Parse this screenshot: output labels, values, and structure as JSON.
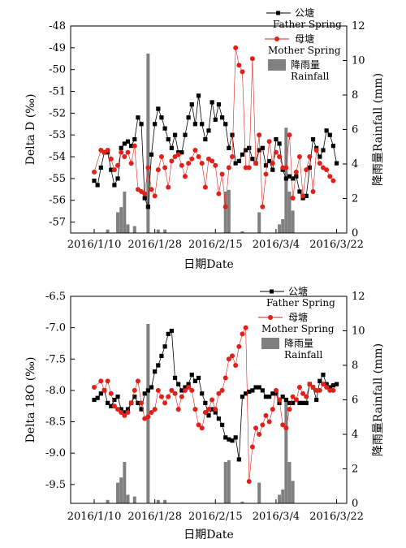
{
  "chart_data": [
    {
      "type": "line",
      "panel": "top",
      "xlabel": "日期Date",
      "ylabel": "Delta D (‰)",
      "y2label": "降雨量Rainfall (mm)",
      "x_ticks": [
        "2016/1/10",
        "2016/1/28",
        "2016/2/15",
        "2016/3/4",
        "2016/3/22"
      ],
      "ylim": [
        -57.5,
        -48
      ],
      "yticks": [
        -57,
        -56,
        -55,
        -54,
        -53,
        -52,
        -51,
        -50,
        -49,
        -48
      ],
      "ytick_labels": [
        "-57",
        "-56",
        "-55",
        "-54",
        "-53",
        "-52",
        "-51",
        "-50",
        "-49",
        "-48"
      ],
      "y2lim": [
        0,
        12
      ],
      "y2ticks": [
        0,
        2,
        4,
        6,
        8,
        10,
        12
      ],
      "legend": [
        {
          "label_cn": "公塘",
          "label_en": "Father Spring",
          "marker": "square",
          "color": "#000000"
        },
        {
          "label_cn": "母塘",
          "label_en": "Mother Spring",
          "marker": "circle",
          "color": "#e0201b"
        },
        {
          "label_cn": "降雨量",
          "label_en": "Rainfall",
          "marker": "bar",
          "color": "#808080"
        }
      ],
      "series": [
        {
          "name": "公塘 Father Spring",
          "color": "#000000",
          "x": [
            0,
            1,
            2,
            3,
            4,
            5,
            6,
            7,
            8,
            9,
            10,
            11,
            12,
            13,
            14,
            15,
            16,
            17,
            18,
            19,
            20,
            21,
            22,
            23,
            24,
            25,
            26,
            27,
            28,
            29,
            30,
            31,
            32,
            33,
            34,
            35,
            36,
            37,
            38,
            39,
            40,
            41,
            42,
            43,
            44,
            45,
            46,
            47,
            48,
            49,
            50,
            51,
            52,
            53,
            54,
            55,
            56,
            57,
            58,
            59,
            60,
            61,
            62,
            63,
            64,
            65,
            66,
            67,
            68,
            69,
            70,
            71,
            72
          ],
          "values": [
            -55.1,
            -55.3,
            -54.5,
            -53.8,
            -53.8,
            -54.6,
            -55.3,
            -55.0,
            -53.6,
            -53.4,
            -53.3,
            -53.5,
            -53.2,
            -52.2,
            -52.5,
            -55.9,
            -56.3,
            -53.9,
            -52.5,
            -51.8,
            -52.2,
            -52.7,
            -53.2,
            -53.6,
            -53.0,
            -53.8,
            -53.8,
            -53.0,
            -52.2,
            -51.6,
            -52.5,
            -51.2,
            -52.5,
            -53.2,
            -52.8,
            -51.5,
            -52.3,
            -51.6,
            -52.2,
            -52.5,
            -53.6,
            -53.0,
            -54.3,
            -54.2,
            -53.9,
            -53.7,
            -53.6,
            -54.1,
            -54.3,
            -53.7,
            -53.6,
            -54.4,
            -54.2,
            -54.6,
            -53.2,
            -53.4,
            -54.6,
            -55.0,
            -54.9,
            -55.0,
            -54.9,
            -55.6,
            -55.9,
            -55.8,
            -54.5,
            -53.2,
            -53.6,
            -54.0,
            -53.7,
            -52.8,
            -53.0,
            -53.5,
            -54.3
          ]
        },
        {
          "name": "母塘 Mother Spring",
          "color": "#e0201b",
          "x": [
            0,
            2,
            3,
            4,
            5,
            6,
            7,
            8,
            9,
            10,
            11,
            12,
            13,
            14,
            15,
            16,
            17,
            18,
            19,
            20,
            21,
            22,
            23,
            24,
            25,
            26,
            27,
            28,
            29,
            30,
            31,
            32,
            33,
            34,
            35,
            36,
            37,
            38,
            39,
            40,
            41,
            42,
            43,
            44,
            45,
            46,
            47,
            48,
            49,
            50,
            51,
            52,
            53,
            54,
            55,
            56,
            57,
            58,
            59,
            60,
            61,
            62,
            63,
            64,
            65,
            66,
            67,
            68,
            69,
            70,
            71
          ],
          "values": [
            -54.7,
            -53.7,
            -53.8,
            -53.7,
            -54.1,
            -54.6,
            -54.4,
            -53.8,
            -54.0,
            -53.8,
            -54.3,
            -53.5,
            -55.5,
            -55.6,
            -55.7,
            -54.5,
            -55.5,
            -55.8,
            -54.6,
            -54.0,
            -54.5,
            -55.4,
            -54.2,
            -54.0,
            -53.9,
            -54.4,
            -54.9,
            -54.3,
            -54.1,
            -53.7,
            -54.0,
            -54.3,
            -55.4,
            -54.1,
            -54.2,
            -54.4,
            -55.7,
            -54.8,
            -56.3,
            -54.5,
            -54.0,
            -49.0,
            -49.8,
            -50.1,
            -54.5,
            -54.5,
            -49.5,
            -54.3,
            -53.0,
            -56.3,
            -54.8,
            -53.3,
            -54.3,
            -53.8,
            -54.0,
            -54.5,
            -54.5,
            -53.0,
            -55.9,
            -54.7,
            -54.0,
            -55.8,
            -54.6,
            -54.0,
            -55.6,
            -53.7,
            -54.3,
            -54.5,
            -54.6,
            -54.9,
            -55.1
          ]
        },
        {
          "name": "降雨量 Rainfall",
          "color": "#808080",
          "x": [
            4,
            7,
            8,
            9,
            10,
            12,
            16,
            19,
            21,
            39,
            40,
            44,
            49,
            55,
            56,
            57,
            58,
            59
          ],
          "values": [
            0.2,
            1.2,
            1.5,
            2.4,
            0.5,
            0.4,
            10.4,
            0.2,
            0.2,
            2.4,
            2.5,
            0.1,
            1.2,
            0.5,
            0.8,
            6.1,
            2.4,
            1.3
          ]
        }
      ]
    },
    {
      "type": "line",
      "panel": "bottom",
      "xlabel": "日期Date",
      "ylabel": "Delta 18O (‰)",
      "y2label": "降雨量Rainfall (mm)",
      "x_ticks": [
        "2016/1/10",
        "2016/1/28",
        "2016/2/15",
        "2016/3/4",
        "2016/3/22"
      ],
      "ylim": [
        -9.8,
        -6.5
      ],
      "yticks": [
        -9.5,
        -9.0,
        -8.5,
        -8.0,
        -7.5,
        -7.0,
        -6.5
      ],
      "ytick_labels": [
        "-9.5",
        "-9.0",
        "-8.5",
        "-8.0",
        "-7.5",
        "-7.0",
        "-6.5"
      ],
      "y2lim": [
        0,
        12
      ],
      "y2ticks": [
        0,
        2,
        4,
        6,
        8,
        10,
        12
      ],
      "legend": [
        {
          "label_cn": "公塘",
          "label_en": "Father Spring",
          "marker": "square",
          "color": "#000000"
        },
        {
          "label_cn": "母塘",
          "label_en": "Mother Spring",
          "marker": "circle",
          "color": "#e0201b"
        },
        {
          "label_cn": "降雨量",
          "label_en": "Rainfall",
          "marker": "bar",
          "color": "#808080"
        }
      ],
      "series": [
        {
          "name": "公塘 Father Spring",
          "color": "#000000",
          "x": [
            0,
            1,
            2,
            3,
            4,
            5,
            6,
            7,
            8,
            9,
            10,
            11,
            12,
            13,
            14,
            15,
            16,
            17,
            18,
            19,
            20,
            21,
            22,
            23,
            24,
            25,
            26,
            27,
            28,
            29,
            30,
            31,
            32,
            33,
            34,
            35,
            36,
            37,
            38,
            39,
            40,
            41,
            42,
            43,
            44,
            45,
            46,
            47,
            48,
            49,
            50,
            51,
            52,
            53,
            54,
            55,
            56,
            57,
            58,
            59,
            60,
            61,
            62,
            63,
            64,
            65,
            66,
            67,
            68,
            69,
            70,
            71,
            72
          ],
          "values": [
            -8.15,
            -8.12,
            -8.05,
            -8.0,
            -8.2,
            -8.25,
            -8.15,
            -8.1,
            -8.3,
            -8.35,
            -8.3,
            -8.2,
            -8.1,
            -8.2,
            -8.3,
            -8.05,
            -8.0,
            -7.95,
            -7.7,
            -7.6,
            -7.45,
            -7.3,
            -7.1,
            -7.05,
            -7.8,
            -7.9,
            -8.0,
            -7.95,
            -7.9,
            -7.75,
            -7.85,
            -7.8,
            -8.05,
            -8.2,
            -8.4,
            -8.3,
            -8.35,
            -8.45,
            -8.55,
            -8.75,
            -8.78,
            -8.8,
            -8.75,
            -9.1,
            -8.1,
            -8.05,
            -8.02,
            -8.0,
            -7.95,
            -7.95,
            -8.0,
            -8.1,
            -8.1,
            -8.05,
            -8.05,
            -8.2,
            -8.1,
            -8.15,
            -8.2,
            -8.2,
            -8.15,
            -8.2,
            -8.2,
            -8.2,
            -7.9,
            -7.95,
            -8.15,
            -7.85,
            -7.75,
            -7.9,
            -7.95,
            -7.92,
            -7.9
          ]
        },
        {
          "name": "母塘 Mother Spring",
          "color": "#e0201b",
          "x": [
            0,
            2,
            3,
            4,
            5,
            6,
            7,
            8,
            9,
            10,
            11,
            12,
            13,
            14,
            15,
            16,
            17,
            18,
            19,
            20,
            21,
            22,
            23,
            24,
            25,
            26,
            27,
            28,
            29,
            30,
            31,
            32,
            33,
            34,
            35,
            36,
            37,
            38,
            39,
            40,
            41,
            42,
            43,
            44,
            45,
            46,
            47,
            48,
            49,
            50,
            51,
            52,
            53,
            54,
            55,
            56,
            57,
            58,
            59,
            60,
            61,
            62,
            63,
            64,
            65,
            66,
            67,
            68,
            69,
            70,
            71
          ],
          "values": [
            -7.95,
            -7.85,
            -8.0,
            -7.85,
            -8.05,
            -8.25,
            -8.3,
            -8.35,
            -8.4,
            -8.35,
            -8.2,
            -8.0,
            -7.85,
            -8.2,
            -8.45,
            -8.42,
            -8.35,
            -8.3,
            -8.0,
            -8.1,
            -8.2,
            -8.1,
            -8.0,
            -8.05,
            -8.3,
            -8.1,
            -8.0,
            -7.95,
            -8.0,
            -8.3,
            -8.55,
            -8.6,
            -8.35,
            -8.3,
            -8.15,
            -8.3,
            -8.05,
            -8.0,
            -7.8,
            -7.5,
            -7.45,
            -7.6,
            -7.3,
            -7.1,
            -7.0,
            -9.45,
            -8.9,
            -8.6,
            -8.7,
            -8.55,
            -8.4,
            -8.5,
            -8.3,
            -8.0,
            -8.15,
            -8.55,
            -8.6,
            -8.3,
            -8.1,
            -8.15,
            -7.95,
            -8.05,
            -8.1,
            -7.9,
            -7.95,
            -8.0,
            -8.0,
            -7.9,
            -7.95,
            -8.0,
            -8.0
          ]
        },
        {
          "name": "降雨量 Rainfall",
          "color": "#808080",
          "x": [
            4,
            7,
            8,
            9,
            10,
            12,
            16,
            19,
            21,
            39,
            40,
            44,
            49,
            55,
            56,
            57,
            58,
            59
          ],
          "values": [
            0.2,
            1.2,
            1.5,
            2.4,
            0.5,
            0.4,
            10.4,
            0.2,
            0.2,
            2.4,
            2.5,
            0.1,
            1.2,
            0.5,
            0.8,
            6.1,
            2.4,
            1.3
          ]
        }
      ]
    }
  ]
}
